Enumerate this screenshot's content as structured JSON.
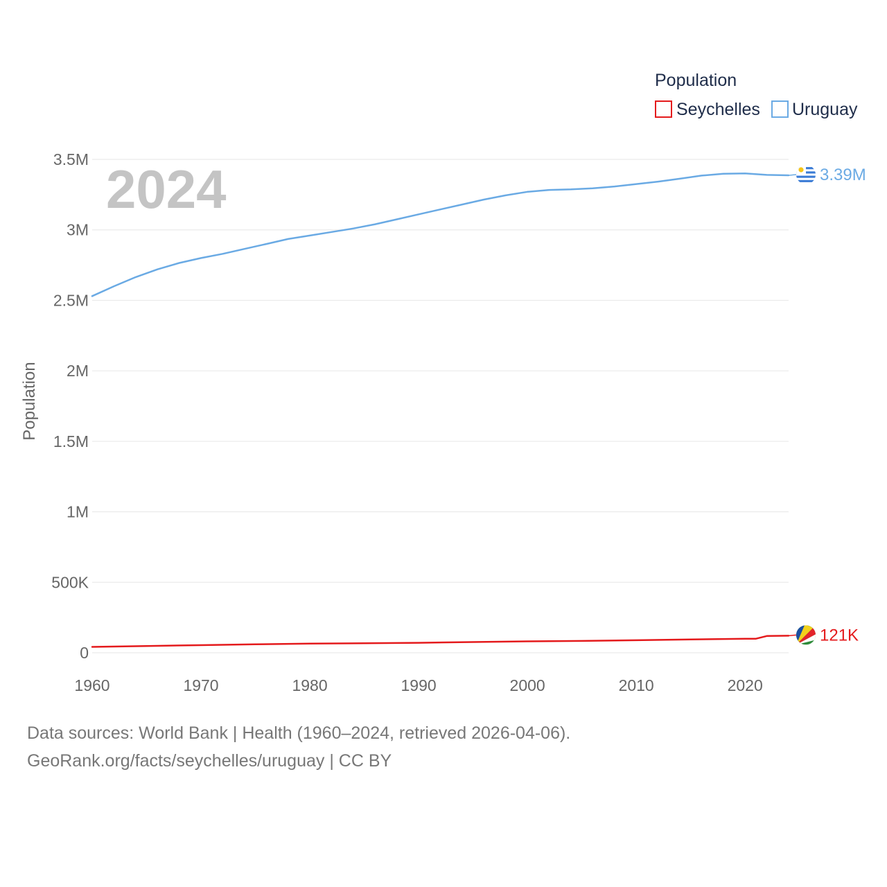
{
  "chart_data": {
    "type": "line",
    "title": "Population",
    "year_label": "2024",
    "ylabel": "Population",
    "xlabel": "",
    "xlim": [
      1960,
      2024
    ],
    "ylim": [
      0,
      3500000
    ],
    "y_ticks": [
      {
        "value": 0,
        "label": "0"
      },
      {
        "value": 500000,
        "label": "500K"
      },
      {
        "value": 1000000,
        "label": "1M"
      },
      {
        "value": 1500000,
        "label": "1.5M"
      },
      {
        "value": 2000000,
        "label": "2M"
      },
      {
        "value": 2500000,
        "label": "2.5M"
      },
      {
        "value": 3000000,
        "label": "3M"
      },
      {
        "value": 3500000,
        "label": "3.5M"
      }
    ],
    "x_ticks": [
      {
        "value": 1960,
        "label": "1960"
      },
      {
        "value": 1970,
        "label": "1970"
      },
      {
        "value": 1980,
        "label": "1980"
      },
      {
        "value": 1990,
        "label": "1990"
      },
      {
        "value": 2000,
        "label": "2000"
      },
      {
        "value": 2010,
        "label": "2010"
      },
      {
        "value": 2020,
        "label": "2020"
      }
    ],
    "legend": {
      "title": "Population",
      "placement": "top-right"
    },
    "series": [
      {
        "name": "Seychelles",
        "color": "#e41a1c",
        "end_label": "121K",
        "flag_icon": "seychelles-flag-icon",
        "x": [
          1960,
          1965,
          1970,
          1975,
          1980,
          1985,
          1990,
          1995,
          2000,
          2005,
          2010,
          2015,
          2020,
          2021,
          2022,
          2024
        ],
        "y": [
          42000,
          48000,
          54000,
          60000,
          65000,
          68000,
          71000,
          76000,
          81000,
          84000,
          89000,
          95000,
          100000,
          100000,
          119000,
          121000
        ]
      },
      {
        "name": "Uruguay",
        "color": "#6aaae4",
        "end_label": "3.39M",
        "flag_icon": "uruguay-flag-icon",
        "x": [
          1960,
          1962,
          1964,
          1966,
          1968,
          1970,
          1972,
          1974,
          1976,
          1978,
          1980,
          1982,
          1984,
          1986,
          1988,
          1990,
          1992,
          1994,
          1996,
          1998,
          2000,
          2002,
          2004,
          2006,
          2008,
          2010,
          2012,
          2014,
          2016,
          2018,
          2020,
          2022,
          2024
        ],
        "y": [
          2530000,
          2600000,
          2665000,
          2720000,
          2765000,
          2800000,
          2830000,
          2865000,
          2900000,
          2935000,
          2960000,
          2985000,
          3010000,
          3040000,
          3075000,
          3110000,
          3145000,
          3180000,
          3215000,
          3245000,
          3270000,
          3283000,
          3287000,
          3295000,
          3308000,
          3325000,
          3342000,
          3363000,
          3385000,
          3398000,
          3400000,
          3390000,
          3387000
        ]
      }
    ]
  },
  "footer": {
    "line1": "Data sources: World Bank | Health (1960–2024, retrieved 2026-04-06).",
    "line2": "GeoRank.org/facts/seychelles/uruguay | CC BY"
  }
}
